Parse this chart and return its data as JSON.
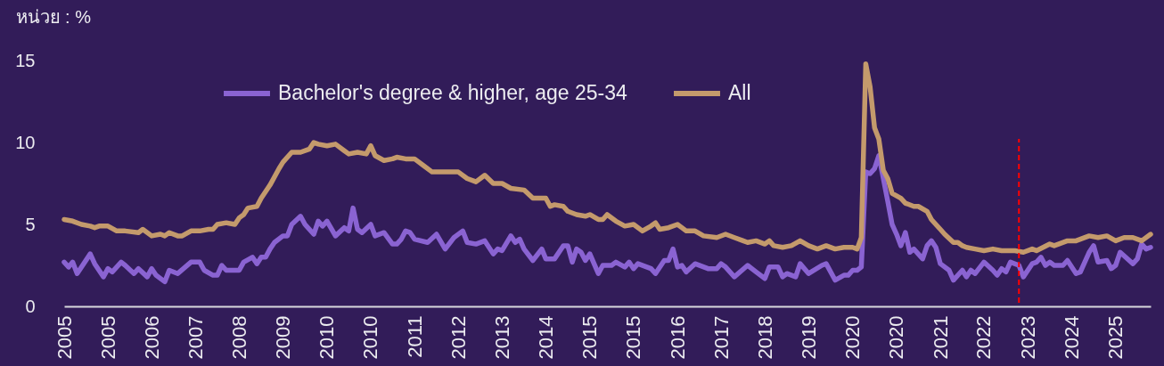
{
  "chart_data": {
    "type": "line",
    "ylabel": "หน่วย : %",
    "xlim": [
      "2005-01",
      "2025-09"
    ],
    "xticks": [
      {
        "value": "2005-01",
        "label": "2005"
      },
      {
        "value": "2005-11",
        "label": "2005"
      },
      {
        "value": "2006-09",
        "label": "2006"
      },
      {
        "value": "2007-07",
        "label": "2007"
      },
      {
        "value": "2008-05",
        "label": "2008"
      },
      {
        "value": "2009-03",
        "label": "2009"
      },
      {
        "value": "2010-01",
        "label": "2010"
      },
      {
        "value": "2010-11",
        "label": "2010"
      },
      {
        "value": "2011-09",
        "label": "2011"
      },
      {
        "value": "2012-07",
        "label": "2012"
      },
      {
        "value": "2013-05",
        "label": "2013"
      },
      {
        "value": "2014-03",
        "label": "2014"
      },
      {
        "value": "2015-01",
        "label": "2015"
      },
      {
        "value": "2015-11",
        "label": "2015"
      },
      {
        "value": "2016-09",
        "label": "2016"
      },
      {
        "value": "2017-07",
        "label": "2017"
      },
      {
        "value": "2018-05",
        "label": "2018"
      },
      {
        "value": "2019-03",
        "label": "2019"
      },
      {
        "value": "2020-01",
        "label": "2020"
      },
      {
        "value": "2020-11",
        "label": "2020"
      },
      {
        "value": "2021-09",
        "label": "2021"
      },
      {
        "value": "2022-07",
        "label": "2022"
      },
      {
        "value": "2023-05",
        "label": "2023"
      },
      {
        "value": "2024-03",
        "label": "2024"
      },
      {
        "value": "2025-01",
        "label": "2025"
      }
    ],
    "ylim": [
      0,
      15
    ],
    "yticks": [
      0,
      5,
      10,
      15
    ],
    "legend": "top",
    "series": [
      {
        "name": "Bachelor's degree & higher, age 25-34",
        "color": "#8a63d2",
        "x": [
          "2005-01",
          "2005-02",
          "2005-03",
          "2005-04",
          "2005-07",
          "2005-08",
          "2005-10",
          "2005-11",
          "2005-12",
          "2006-02",
          "2006-03",
          "2006-05",
          "2006-06",
          "2006-08",
          "2006-09",
          "2006-10",
          "2006-12",
          "2007-01",
          "2007-03",
          "2007-06",
          "2007-08",
          "2007-09",
          "2007-11",
          "2007-12",
          "2008-01",
          "2008-02",
          "2008-05",
          "2008-06",
          "2008-08",
          "2008-09",
          "2008-10",
          "2008-11",
          "2008-12",
          "2009-01",
          "2009-03",
          "2009-04",
          "2009-05",
          "2009-07",
          "2009-08",
          "2009-10",
          "2009-11",
          "2009-12",
          "2010-01",
          "2010-03",
          "2010-05",
          "2010-06",
          "2010-07",
          "2010-08",
          "2010-09",
          "2010-11",
          "2010-12",
          "2011-02",
          "2011-04",
          "2011-05",
          "2011-06",
          "2011-07",
          "2011-08",
          "2011-09",
          "2011-12",
          "2012-02",
          "2012-04",
          "2012-06",
          "2012-08",
          "2012-09",
          "2012-11",
          "2013-01",
          "2013-03",
          "2013-04",
          "2013-05",
          "2013-07",
          "2013-08",
          "2013-09",
          "2013-10",
          "2013-12",
          "2014-02",
          "2014-03",
          "2014-05",
          "2014-07",
          "2014-08",
          "2014-09",
          "2014-10",
          "2014-11",
          "2014-12",
          "2015-01",
          "2015-03",
          "2015-04",
          "2015-06",
          "2015-07",
          "2015-09",
          "2015-10",
          "2015-11",
          "2015-12",
          "2016-02",
          "2016-03",
          "2016-04",
          "2016-06",
          "2016-07",
          "2016-08",
          "2016-09",
          "2016-10",
          "2016-11",
          "2017-01",
          "2017-04",
          "2017-06",
          "2017-07",
          "2017-08",
          "2017-10",
          "2018-01",
          "2018-03",
          "2018-05",
          "2018-06",
          "2018-08",
          "2018-09",
          "2018-10",
          "2018-12",
          "2019-01",
          "2019-03",
          "2019-06",
          "2019-07",
          "2019-09",
          "2019-11",
          "2019-12",
          "2020-01",
          "2020-02",
          "2020-03",
          "2020-04",
          "2020-05",
          "2020-06",
          "2020-07",
          "2020-08",
          "2020-09",
          "2020-10",
          "2020-11",
          "2020-12",
          "2021-01",
          "2021-02",
          "2021-03",
          "2021-05",
          "2021-06",
          "2021-07",
          "2021-08",
          "2021-09",
          "2021-11",
          "2021-12",
          "2022-02",
          "2022-03",
          "2022-04",
          "2022-05",
          "2022-07",
          "2022-09",
          "2022-10",
          "2022-11",
          "2022-12",
          "2023-01",
          "2023-03",
          "2023-04",
          "2023-06",
          "2023-07",
          "2023-08",
          "2023-09",
          "2023-10",
          "2023-11",
          "2024-01",
          "2024-02",
          "2024-04",
          "2024-05",
          "2024-07",
          "2024-08",
          "2024-09",
          "2024-11",
          "2024-12",
          "2025-01",
          "2025-02",
          "2025-05",
          "2025-06",
          "2025-07",
          "2025-08",
          "2025-09"
        ],
        "values": [
          2.7,
          2.4,
          2.7,
          2.0,
          3.2,
          2.6,
          1.8,
          2.3,
          2.1,
          2.7,
          2.5,
          2.0,
          2.3,
          1.8,
          2.3,
          1.9,
          1.5,
          2.2,
          2.0,
          2.7,
          2.7,
          2.2,
          1.9,
          1.9,
          2.5,
          2.2,
          2.2,
          2.7,
          3.0,
          2.6,
          3.0,
          3.0,
          3.5,
          3.9,
          4.3,
          4.3,
          5.0,
          5.5,
          5.0,
          4.4,
          5.2,
          4.9,
          5.2,
          4.3,
          4.8,
          4.6,
          6.0,
          4.7,
          4.5,
          5.0,
          4.3,
          4.5,
          3.8,
          3.8,
          4.1,
          4.6,
          4.5,
          4.1,
          3.9,
          4.4,
          3.5,
          4.2,
          4.6,
          3.9,
          3.8,
          4.0,
          3.2,
          3.5,
          3.4,
          4.3,
          3.9,
          4.1,
          3.5,
          2.8,
          3.5,
          2.9,
          2.9,
          3.7,
          3.7,
          2.7,
          3.5,
          3.3,
          2.8,
          3.2,
          2.0,
          2.5,
          2.5,
          2.7,
          2.4,
          2.7,
          2.3,
          2.6,
          2.4,
          2.3,
          2.0,
          2.8,
          2.8,
          3.5,
          2.4,
          2.5,
          2.1,
          2.6,
          2.3,
          2.3,
          2.6,
          2.4,
          1.8,
          2.5,
          2.1,
          1.7,
          2.4,
          2.4,
          1.8,
          2.0,
          1.8,
          2.6,
          2.0,
          2.5,
          2.6,
          1.6,
          1.9,
          1.9,
          2.2,
          2.2,
          2.4,
          8.2,
          8.1,
          8.4,
          9.2,
          7.8,
          6.4,
          5.0,
          4.4,
          3.7,
          4.5,
          3.3,
          3.5,
          2.9,
          3.7,
          4.0,
          3.6,
          2.6,
          2.2,
          1.6,
          2.2,
          1.8,
          2.2,
          2.0,
          2.7,
          2.2,
          1.9,
          2.3,
          2.1,
          2.7,
          2.5,
          1.8,
          2.6,
          2.7,
          3.0,
          2.5,
          2.7,
          2.5,
          2.5,
          2.8,
          2.0,
          2.1,
          3.3,
          3.7,
          2.7,
          2.8,
          2.3,
          2.5,
          3.3,
          2.6,
          2.9,
          3.8,
          3.5,
          3.6
        ]
      },
      {
        "name": "All",
        "color": "#c49a6c",
        "x": [
          "2005-01",
          "2005-03",
          "2005-05",
          "2005-07",
          "2005-08",
          "2005-09",
          "2005-11",
          "2006-01",
          "2006-03",
          "2006-06",
          "2006-07",
          "2006-09",
          "2006-11",
          "2006-12",
          "2007-01",
          "2007-03",
          "2007-04",
          "2007-06",
          "2007-08",
          "2007-10",
          "2007-11",
          "2007-12",
          "2008-02",
          "2008-04",
          "2008-05",
          "2008-06",
          "2008-07",
          "2008-09",
          "2008-10",
          "2008-12",
          "2009-02",
          "2009-03",
          "2009-05",
          "2009-07",
          "2009-09",
          "2009-10",
          "2009-11",
          "2010-01",
          "2010-03",
          "2010-05",
          "2010-06",
          "2010-08",
          "2010-10",
          "2010-11",
          "2010-12",
          "2011-02",
          "2011-04",
          "2011-05",
          "2011-07",
          "2011-09",
          "2011-11",
          "2012-01",
          "2012-04",
          "2012-07",
          "2012-09",
          "2012-11",
          "2013-01",
          "2013-03",
          "2013-05",
          "2013-07",
          "2013-10",
          "2013-12",
          "2014-03",
          "2014-04",
          "2014-05",
          "2014-07",
          "2014-08",
          "2014-10",
          "2014-12",
          "2015-01",
          "2015-03",
          "2015-04",
          "2015-05",
          "2015-07",
          "2015-09",
          "2015-11",
          "2016-01",
          "2016-03",
          "2016-04",
          "2016-05",
          "2016-07",
          "2016-09",
          "2016-11",
          "2017-01",
          "2017-03",
          "2017-06",
          "2017-08",
          "2017-10",
          "2017-12",
          "2018-01",
          "2018-03",
          "2018-05",
          "2018-06",
          "2018-07",
          "2018-09",
          "2018-11",
          "2019-01",
          "2019-03",
          "2019-05",
          "2019-07",
          "2019-09",
          "2019-11",
          "2020-01",
          "2020-02",
          "2020-03",
          "2020-04",
          "2020-05",
          "2020-06",
          "2020-07",
          "2020-08",
          "2020-09",
          "2020-10",
          "2020-12",
          "2021-01",
          "2021-03",
          "2021-04",
          "2021-06",
          "2021-07",
          "2021-09",
          "2021-10",
          "2021-12",
          "2022-01",
          "2022-02",
          "2022-03",
          "2022-05",
          "2022-07",
          "2022-09",
          "2022-11",
          "2023-02",
          "2023-04",
          "2023-06",
          "2023-07",
          "2023-10",
          "2023-11",
          "2023-12",
          "2024-02",
          "2024-04",
          "2024-07",
          "2024-09",
          "2024-11",
          "2025-01",
          "2025-03",
          "2025-05",
          "2025-07",
          "2025-09"
        ],
        "values": [
          5.3,
          5.2,
          5.0,
          4.9,
          4.8,
          4.9,
          4.9,
          4.6,
          4.6,
          4.5,
          4.7,
          4.3,
          4.4,
          4.3,
          4.5,
          4.3,
          4.3,
          4.6,
          4.6,
          4.7,
          4.7,
          5.0,
          5.1,
          5.0,
          5.4,
          5.6,
          6.0,
          6.1,
          6.6,
          7.4,
          8.4,
          8.8,
          9.4,
          9.4,
          9.6,
          10.0,
          9.9,
          9.8,
          9.9,
          9.5,
          9.3,
          9.4,
          9.3,
          9.8,
          9.2,
          8.9,
          9.0,
          9.1,
          9.0,
          9.0,
          8.6,
          8.2,
          8.2,
          8.2,
          7.8,
          7.6,
          8.0,
          7.5,
          7.5,
          7.2,
          7.1,
          6.6,
          6.6,
          6.1,
          6.2,
          6.1,
          5.8,
          5.6,
          5.5,
          5.6,
          5.3,
          5.3,
          5.6,
          5.2,
          4.9,
          5.0,
          4.6,
          4.9,
          5.1,
          4.7,
          4.8,
          5.0,
          4.6,
          4.6,
          4.3,
          4.2,
          4.4,
          4.2,
          4.0,
          3.9,
          4.0,
          3.8,
          4.0,
          3.7,
          3.6,
          3.7,
          4.0,
          3.7,
          3.5,
          3.7,
          3.5,
          3.6,
          3.6,
          3.5,
          4.2,
          14.8,
          13.4,
          10.9,
          10.2,
          8.3,
          7.8,
          6.9,
          6.6,
          6.3,
          6.1,
          6.1,
          5.8,
          5.3,
          4.7,
          4.4,
          3.9,
          3.9,
          3.7,
          3.6,
          3.5,
          3.4,
          3.5,
          3.4,
          3.4,
          3.3,
          3.5,
          3.4,
          3.8,
          3.7,
          3.8,
          4.0,
          4.0,
          4.3,
          4.2,
          4.3,
          4.0,
          4.2,
          4.2,
          4.0,
          4.4
        ]
      }
    ],
    "ref_lines": [
      {
        "axis": "x",
        "value": "2023-03",
        "color": "#ff0000",
        "line_style": "dashed"
      }
    ]
  }
}
